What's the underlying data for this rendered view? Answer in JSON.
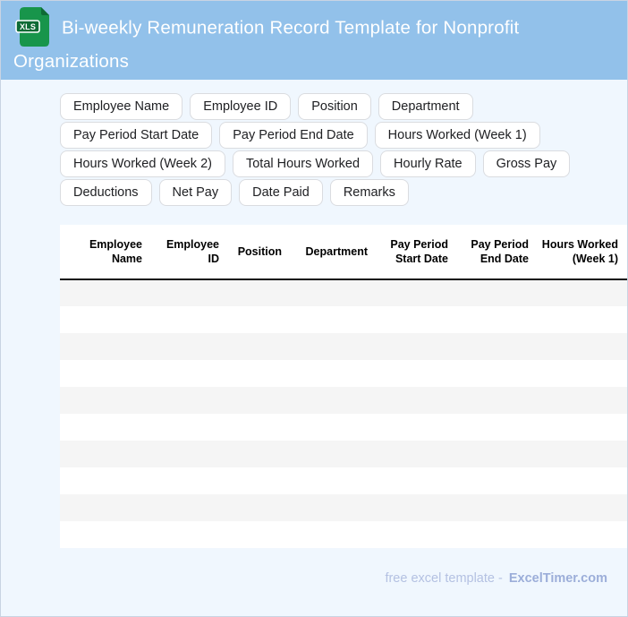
{
  "header": {
    "title": "Bi-weekly Remuneration Record Template for Nonprofit Organizations",
    "icon_label": "XLS",
    "bg_color": "#92c1ea"
  },
  "chips": [
    "Employee Name",
    "Employee ID",
    "Position",
    "Department",
    "Pay Period Start Date",
    "Pay Period End Date",
    "Hours Worked (Week 1)",
    "Hours Worked (Week 2)",
    "Total Hours Worked",
    "Hourly Rate",
    "Gross Pay",
    "Deductions",
    "Net Pay",
    "Date Paid",
    "Remarks"
  ],
  "table": {
    "columns": [
      "Employee Name",
      "Employee ID",
      "Position",
      "Department",
      "Pay Period Start Date",
      "Pay Period End Date",
      "Hours Worked (Week 1)"
    ],
    "empty_row_count": 10,
    "row_values": []
  },
  "footer": {
    "text": "free excel template -",
    "brand": "ExcelTimer.com"
  },
  "colors": {
    "header_bg": "#92c1ea",
    "page_bg": "#f0f7fe",
    "row_stripe": "#f5f5f5",
    "icon_green": "#18954b",
    "icon_green_dark": "#0e6b35",
    "footer_text": "#b4c1e2",
    "footer_brand": "#9caed9"
  }
}
